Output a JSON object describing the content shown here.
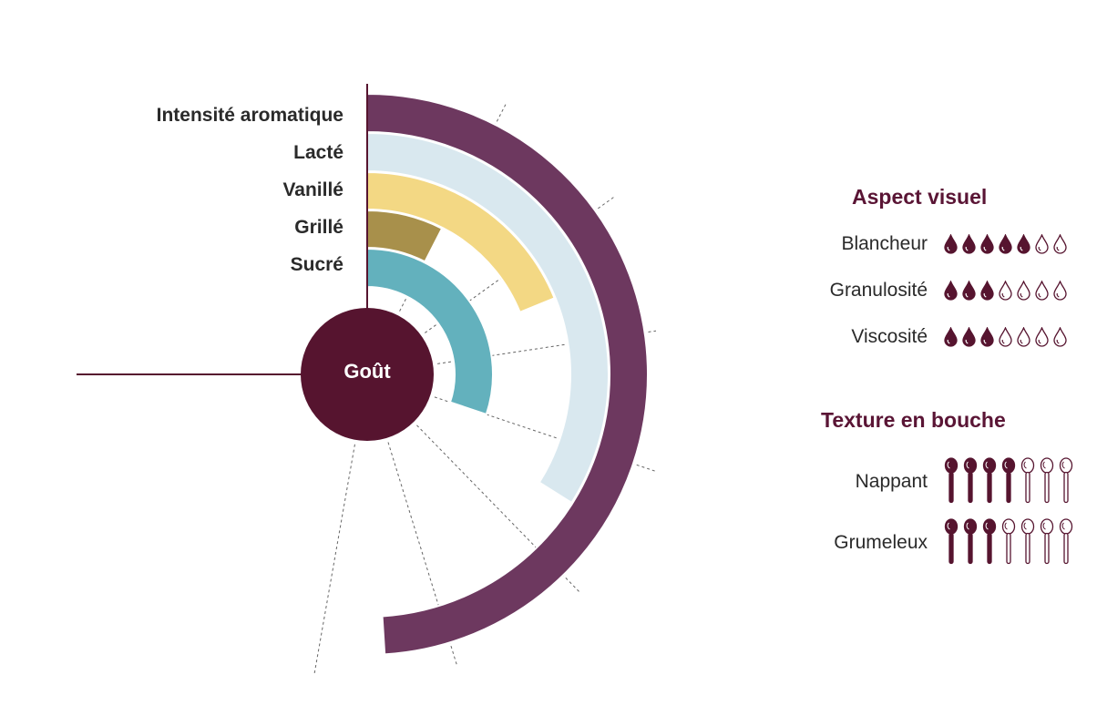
{
  "colors": {
    "burgundy": "#56142f",
    "purple": "#6d385f",
    "light_blue": "#d9e8ef",
    "yellow": "#f3d884",
    "olive": "#a8904b",
    "teal": "#63b1bd",
    "title": "#5a1535"
  },
  "chart_data": {
    "type": "radial-bar",
    "center_label": "Goût",
    "scale_max": 7,
    "rings": [
      {
        "name": "Intensité aromatique",
        "value": 6.5,
        "color": "#6d385f"
      },
      {
        "name": "Lacté",
        "value": 4.5,
        "color": "#d9e8ef"
      },
      {
        "name": "Vanillé",
        "value": 2.5,
        "color": "#f3d884"
      },
      {
        "name": "Grillé",
        "value": 1,
        "color": "#a8904b"
      },
      {
        "name": "Sucré",
        "value": 4,
        "color": "#63b1bd"
      }
    ]
  },
  "aspect_visuel": {
    "title": "Aspect visuel",
    "max": 7,
    "icon": "drop-icon",
    "rows": [
      {
        "label": "Blancheur",
        "value": 5
      },
      {
        "label": "Granulosité",
        "value": 3
      },
      {
        "label": "Viscosité",
        "value": 3
      }
    ]
  },
  "texture": {
    "title": "Texture en bouche",
    "max": 7,
    "icon": "spoon-icon",
    "rows": [
      {
        "label": "Nappant",
        "value": 4
      },
      {
        "label": "Grumeleux",
        "value": 3
      }
    ]
  }
}
